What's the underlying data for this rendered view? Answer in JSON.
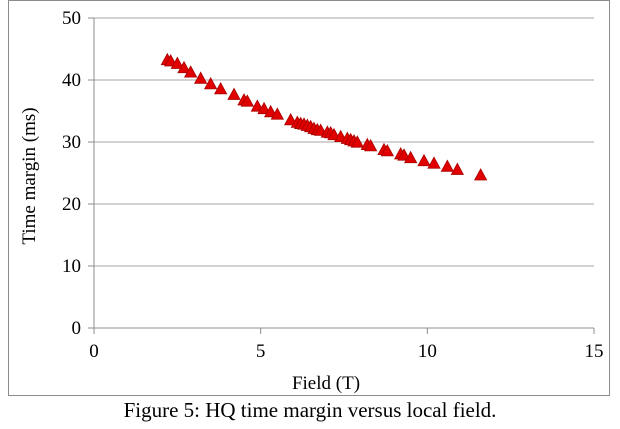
{
  "caption": "Figure 5: HQ time margin versus local field.",
  "colors": {
    "marker_fill": "#e00000",
    "marker_stroke": "#a80000",
    "gridline": "#a6a6a6",
    "axis": "#8c8c8c",
    "frame": "#8c8c8c"
  },
  "chart_data": {
    "type": "scatter",
    "title": "",
    "xlabel": "Field (T)",
    "ylabel": "Time margin (ms)",
    "xlim": [
      0,
      15
    ],
    "ylim": [
      0,
      50
    ],
    "xticks": [
      0,
      5,
      10,
      15
    ],
    "yticks": [
      0,
      10,
      20,
      30,
      40,
      50
    ],
    "x_tick_labels": [
      "0",
      "5",
      "10",
      "15"
    ],
    "y_tick_labels": [
      "0",
      "10",
      "20",
      "30",
      "40",
      "50"
    ],
    "horizontal_grid": true,
    "vertical_grid": false,
    "legend": "none",
    "marker": "triangle",
    "series": [
      {
        "x": [
          2.2,
          2.3,
          2.5,
          2.7,
          2.9,
          3.2,
          3.5,
          3.8,
          4.2,
          4.5,
          4.6,
          4.9,
          5.1,
          5.3,
          5.5,
          5.9,
          6.1,
          6.2,
          6.3,
          6.4,
          6.5,
          6.6,
          6.7,
          6.8,
          7.0,
          7.1,
          7.2,
          7.4,
          7.6,
          7.7,
          7.8,
          7.9,
          8.2,
          8.3,
          8.7,
          8.8,
          9.2,
          9.3,
          9.5,
          9.9,
          10.2,
          10.6,
          10.9,
          11.6
        ],
        "y": [
          43.2,
          43.0,
          42.6,
          41.9,
          41.2,
          40.2,
          39.3,
          38.5,
          37.6,
          36.7,
          36.5,
          35.7,
          35.3,
          34.8,
          34.4,
          33.5,
          33.1,
          32.9,
          32.8,
          32.6,
          32.4,
          32.1,
          31.9,
          31.8,
          31.5,
          31.4,
          31.1,
          30.8,
          30.5,
          30.3,
          30.1,
          29.9,
          29.5,
          29.3,
          28.7,
          28.5,
          28.0,
          27.8,
          27.4,
          26.9,
          26.5,
          26.0,
          25.5,
          24.6
        ]
      }
    ]
  }
}
